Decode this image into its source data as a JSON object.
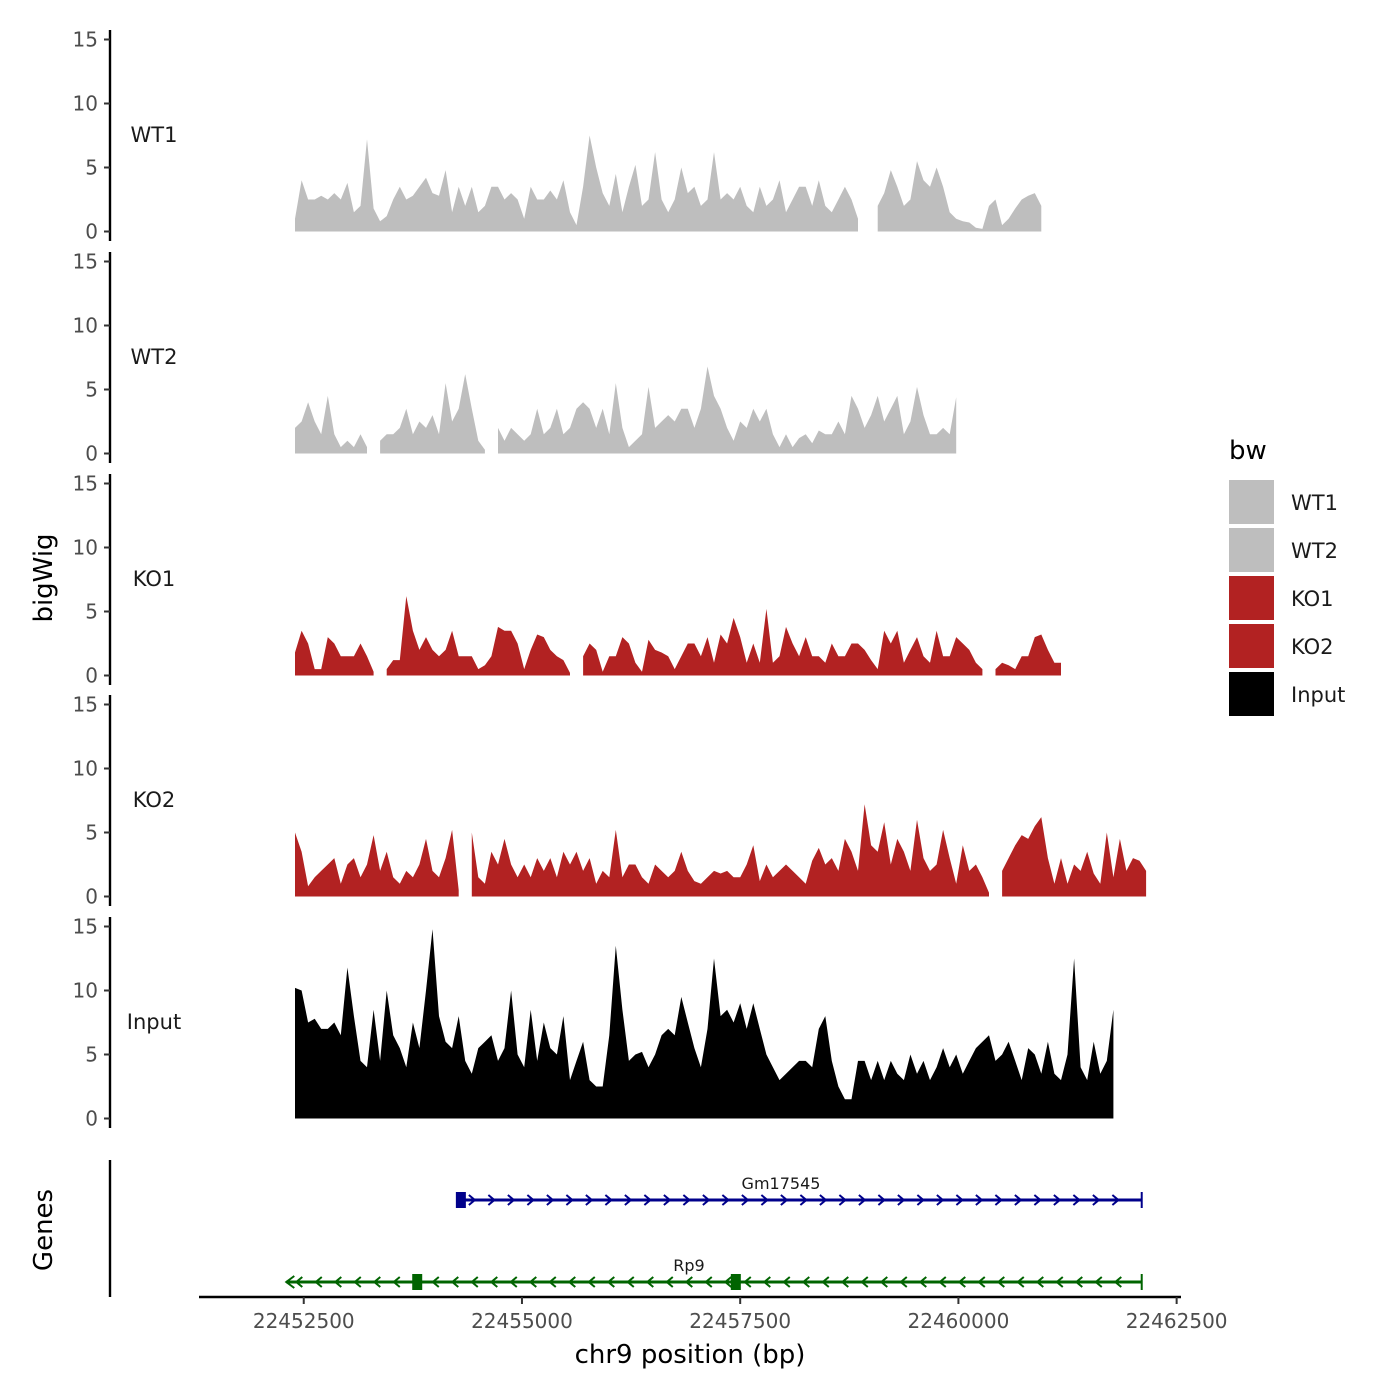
{
  "chart_data": {
    "type": "area",
    "xlabel": "chr9 position (bp)",
    "ylabel": "bigWig",
    "genes_label": "Genes",
    "xlim": [
      22451300,
      22462550
    ],
    "xticks": [
      22452500,
      22455000,
      22457500,
      22460000,
      22462500
    ],
    "xtick_labels": [
      "22452500",
      "22455000",
      "22457500",
      "22460000",
      "22462500"
    ],
    "ylim": [
      0,
      15
    ],
    "yticks": [
      0,
      5,
      10,
      15
    ],
    "ytick_labels": [
      "0",
      "5",
      "10",
      "15"
    ],
    "x_start": 22452400,
    "x_step": 75,
    "legend": {
      "title": "bw",
      "entries": [
        {
          "label": "WT1",
          "color": "#bebebe"
        },
        {
          "label": "WT2",
          "color": "#bebebe"
        },
        {
          "label": "KO1",
          "color": "#b22222"
        },
        {
          "label": "KO2",
          "color": "#b22222"
        },
        {
          "label": "Input",
          "color": "#000000"
        }
      ]
    },
    "series": [
      {
        "name": "WT1",
        "color": "#bebebe",
        "values": [
          1.0,
          4.0,
          2.5,
          2.5,
          2.8,
          2.5,
          3.0,
          2.5,
          3.8,
          1.5,
          2.0,
          7.2,
          1.8,
          0.8,
          1.2,
          2.5,
          3.5,
          2.5,
          2.8,
          3.5,
          4.2,
          3.0,
          2.8,
          4.8,
          1.5,
          3.5,
          2.0,
          3.5,
          1.5,
          2.0,
          3.5,
          3.5,
          2.5,
          3.0,
          2.5,
          1.0,
          3.5,
          2.5,
          2.5,
          3.2,
          2.5,
          4.0,
          1.5,
          0.5,
          3.5,
          7.5,
          5.0,
          3.0,
          2.0,
          4.5,
          1.5,
          3.5,
          5.2,
          2.0,
          2.5,
          6.2,
          2.5,
          1.5,
          2.5,
          5.0,
          3.0,
          3.5,
          2.0,
          2.5,
          6.2,
          2.5,
          3.0,
          2.5,
          3.5,
          2.0,
          1.5,
          3.5,
          2.0,
          2.5,
          4.0,
          1.5,
          2.5,
          3.5,
          3.5,
          2.0,
          4.0,
          2.0,
          1.5,
          2.5,
          3.5,
          2.5,
          1.0,
          null,
          null,
          2.0,
          3.0,
          4.8,
          3.5,
          2.0,
          2.5,
          5.5,
          4.0,
          3.5,
          5.0,
          3.5,
          1.5,
          1.0,
          0.8,
          0.7,
          0.3,
          0.2,
          2.0,
          2.5,
          0.5,
          1.0,
          1.8,
          2.5,
          2.8,
          3.0,
          2.0
        ]
      },
      {
        "name": "WT2",
        "color": "#bebebe",
        "values": [
          2.0,
          2.5,
          4.0,
          2.5,
          1.5,
          4.5,
          1.5,
          0.5,
          1.0,
          0.5,
          1.5,
          0.5,
          null,
          1.0,
          1.5,
          1.5,
          2.0,
          3.5,
          1.5,
          2.5,
          2.0,
          3.0,
          1.5,
          5.5,
          2.5,
          3.5,
          6.2,
          3.5,
          1.0,
          0.3,
          null,
          2.0,
          1.0,
          2.0,
          1.5,
          1.0,
          1.5,
          3.5,
          1.5,
          2.0,
          3.5,
          1.5,
          2.0,
          3.5,
          4.0,
          3.5,
          2.0,
          3.5,
          1.5,
          5.5,
          2.0,
          0.5,
          1.0,
          1.5,
          5.2,
          2.0,
          2.5,
          3.0,
          2.5,
          3.5,
          3.5,
          2.0,
          3.5,
          6.8,
          4.5,
          3.5,
          2.0,
          1.0,
          2.5,
          2.0,
          3.5,
          2.5,
          3.5,
          1.5,
          0.5,
          1.5,
          0.5,
          1.2,
          1.5,
          0.8,
          1.8,
          1.5,
          1.5,
          2.5,
          1.5,
          4.5,
          3.5,
          2.0,
          3.0,
          4.5,
          2.5,
          3.5,
          4.5,
          1.5,
          2.5,
          5.2,
          3.0,
          1.5,
          1.5,
          2.0,
          1.5,
          4.4
        ]
      },
      {
        "name": "KO1",
        "color": "#b22222",
        "values": [
          1.8,
          3.5,
          2.5,
          0.5,
          0.5,
          3.0,
          2.5,
          1.5,
          1.5,
          1.5,
          2.5,
          1.5,
          0.3,
          null,
          0.5,
          1.2,
          1.2,
          6.2,
          3.5,
          2.0,
          3.0,
          2.0,
          1.5,
          2.0,
          3.5,
          1.5,
          1.5,
          1.5,
          0.5,
          0.8,
          1.5,
          3.8,
          3.5,
          3.5,
          2.5,
          0.5,
          2.0,
          3.2,
          3.0,
          2.0,
          1.5,
          1.2,
          0.2,
          null,
          1.5,
          2.5,
          2.0,
          0.3,
          1.5,
          1.5,
          3.0,
          2.5,
          1.0,
          0.3,
          2.8,
          2.0,
          1.8,
          1.5,
          0.5,
          1.5,
          2.5,
          2.5,
          1.5,
          3.0,
          1.0,
          3.2,
          2.5,
          4.5,
          3.0,
          1.0,
          2.5,
          1.0,
          5.2,
          1.0,
          1.5,
          3.8,
          2.5,
          1.5,
          3.0,
          1.5,
          1.5,
          1.0,
          2.5,
          1.5,
          1.5,
          2.5,
          2.5,
          2.0,
          1.2,
          0.5,
          3.5,
          2.5,
          3.5,
          1.0,
          2.0,
          3.0,
          1.5,
          1.0,
          3.5,
          1.5,
          1.5,
          3.0,
          2.5,
          2.0,
          1.0,
          0.5,
          null,
          0.5,
          1.0,
          0.8,
          0.5,
          1.5,
          1.5,
          3.0,
          3.2,
          2.0,
          1.0,
          1.0
        ]
      },
      {
        "name": "KO2",
        "color": "#b22222",
        "values": [
          5.0,
          3.5,
          0.8,
          1.5,
          2.0,
          2.5,
          3.0,
          1.0,
          2.5,
          3.0,
          1.5,
          2.5,
          4.8,
          2.0,
          3.5,
          1.5,
          1.0,
          2.0,
          1.5,
          2.5,
          4.5,
          2.0,
          1.5,
          3.0,
          5.2,
          0.5,
          null,
          5.0,
          1.5,
          1.0,
          3.5,
          2.5,
          4.5,
          2.5,
          1.5,
          2.5,
          1.5,
          3.0,
          2.0,
          3.0,
          1.5,
          3.5,
          2.5,
          3.5,
          2.0,
          3.0,
          1.0,
          2.0,
          1.5,
          5.2,
          1.5,
          2.5,
          2.5,
          1.5,
          1.0,
          2.5,
          2.0,
          1.5,
          2.0,
          3.5,
          2.0,
          1.2,
          1.0,
          1.5,
          2.0,
          1.8,
          2.0,
          1.5,
          1.5,
          2.5,
          4.0,
          1.2,
          2.5,
          1.5,
          2.0,
          2.5,
          2.0,
          1.5,
          1.0,
          2.8,
          3.8,
          2.5,
          3.0,
          2.0,
          4.5,
          3.5,
          2.0,
          7.2,
          4.0,
          3.5,
          5.8,
          2.5,
          4.5,
          3.5,
          2.0,
          6.0,
          3.0,
          2.0,
          2.5,
          5.2,
          3.0,
          1.0,
          4.0,
          2.0,
          2.5,
          1.5,
          0.3,
          null,
          2.0,
          3.0,
          4.0,
          4.8,
          4.5,
          5.5,
          6.2,
          3.0,
          1.0,
          3.0,
          1.0,
          2.5,
          2.0,
          3.5,
          1.8,
          1.0,
          5.0,
          1.5,
          4.5,
          2.0,
          3.0,
          2.8,
          2.0
        ]
      },
      {
        "name": "Input",
        "color": "#000000",
        "values": [
          10.2,
          10.0,
          7.5,
          7.8,
          7.0,
          7.0,
          7.5,
          6.5,
          11.8,
          8.0,
          4.5,
          4.0,
          8.5,
          4.5,
          10.0,
          6.5,
          5.5,
          4.0,
          7.5,
          5.5,
          10.0,
          14.8,
          8.0,
          6.0,
          5.5,
          8.0,
          4.5,
          3.5,
          5.5,
          6.0,
          6.5,
          4.5,
          5.5,
          10.0,
          5.0,
          4.0,
          8.5,
          4.5,
          7.5,
          5.5,
          5.0,
          8.0,
          3.0,
          4.5,
          6.0,
          3.0,
          2.5,
          2.5,
          6.5,
          13.5,
          8.5,
          4.5,
          5.0,
          5.2,
          4.0,
          5.0,
          6.5,
          7.0,
          6.5,
          9.5,
          7.5,
          5.5,
          4.0,
          7.0,
          12.5,
          8.0,
          8.5,
          7.5,
          9.0,
          7.0,
          9.0,
          7.0,
          5.0,
          4.0,
          3.0,
          3.5,
          4.0,
          4.5,
          4.5,
          4.0,
          7.0,
          8.0,
          4.5,
          2.5,
          1.5,
          1.5,
          4.5,
          4.5,
          3.0,
          4.5,
          3.0,
          4.5,
          3.5,
          3.0,
          5.0,
          3.5,
          4.5,
          3.0,
          4.0,
          5.5,
          4.0,
          5.0,
          3.5,
          4.5,
          5.5,
          6.0,
          6.5,
          4.5,
          5.0,
          6.0,
          4.5,
          3.0,
          5.5,
          5.0,
          3.5,
          6.0,
          3.5,
          3.0,
          5.0,
          12.5,
          4.0,
          3.0,
          6.0,
          3.5,
          4.5,
          8.5
        ]
      }
    ],
    "genes": [
      {
        "name": "Gm17545",
        "strand": "+",
        "start": 22454300,
        "end": 22462100,
        "color": "#00008b",
        "exons": [
          22454300
        ]
      },
      {
        "name": "Rp9",
        "strand": "-",
        "start": 22452300,
        "end": 22462100,
        "color": "#006400",
        "exons": [
          22453800,
          22457450
        ]
      }
    ]
  }
}
